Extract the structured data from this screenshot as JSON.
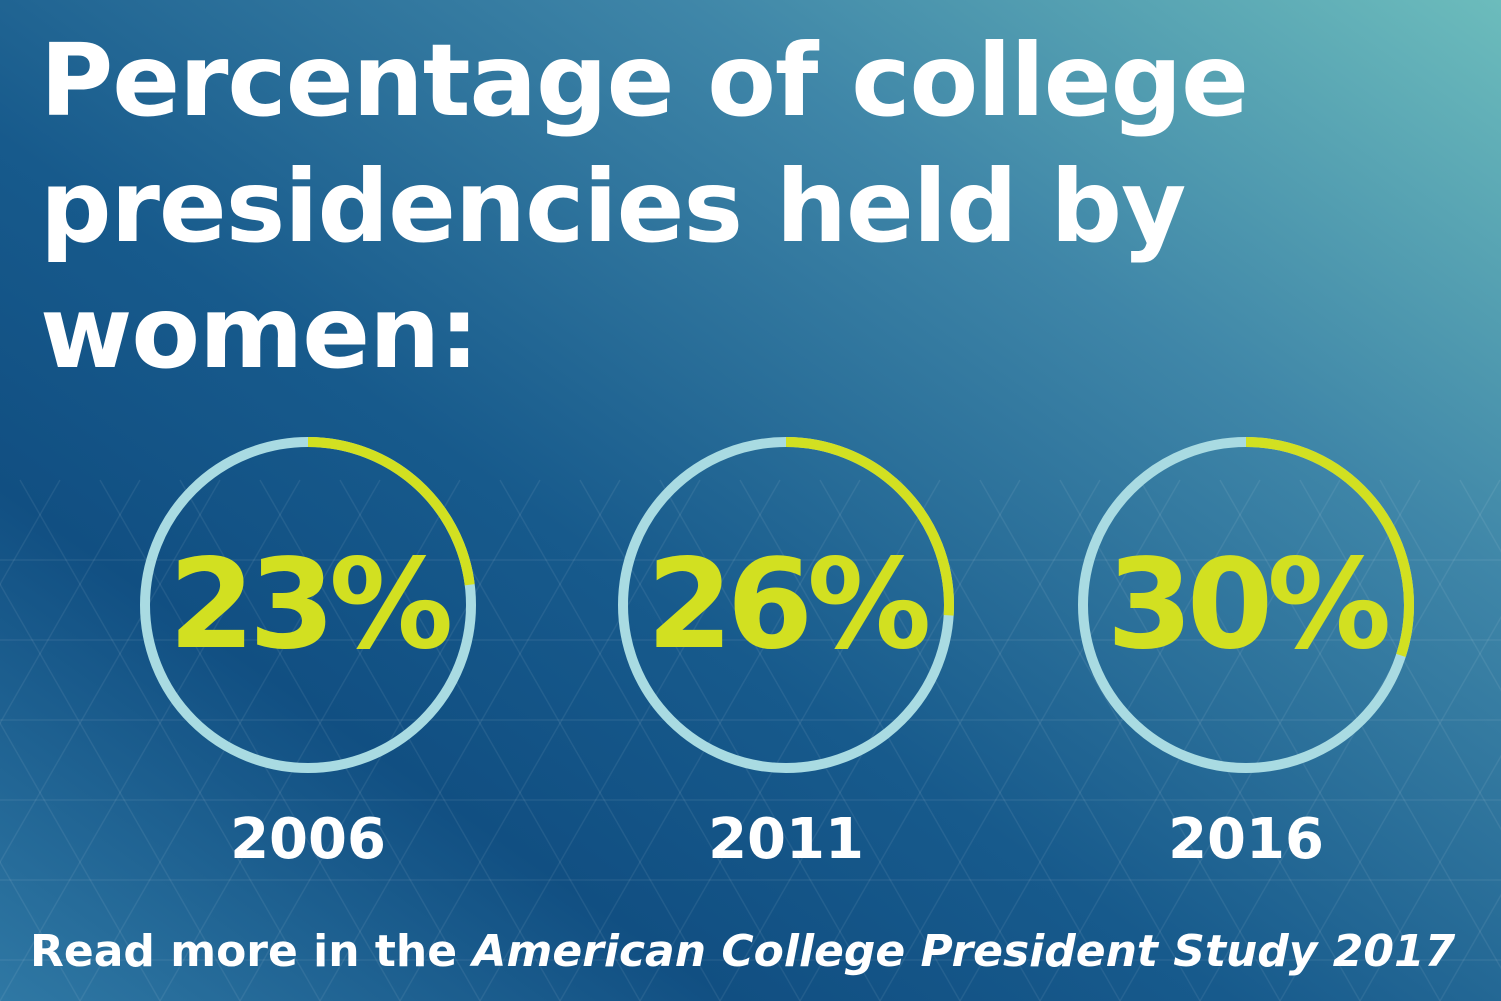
{
  "title": "Percentage of college presidencies held by women:",
  "footer": {
    "prefix": "Read more in the",
    "publication": "American College President Study 2017"
  },
  "colors": {
    "ring_track": "#a9dbe2",
    "ring_fill": "#d2e021",
    "text_white": "#ffffff"
  },
  "chart_data": {
    "type": "donut",
    "title": "Percentage of college presidencies held by women:",
    "categories": [
      "2006",
      "2011",
      "2016"
    ],
    "values": [
      23,
      26,
      30
    ],
    "value_labels": [
      "23%",
      "26%",
      "30%"
    ],
    "unit": "%",
    "max": 100
  }
}
